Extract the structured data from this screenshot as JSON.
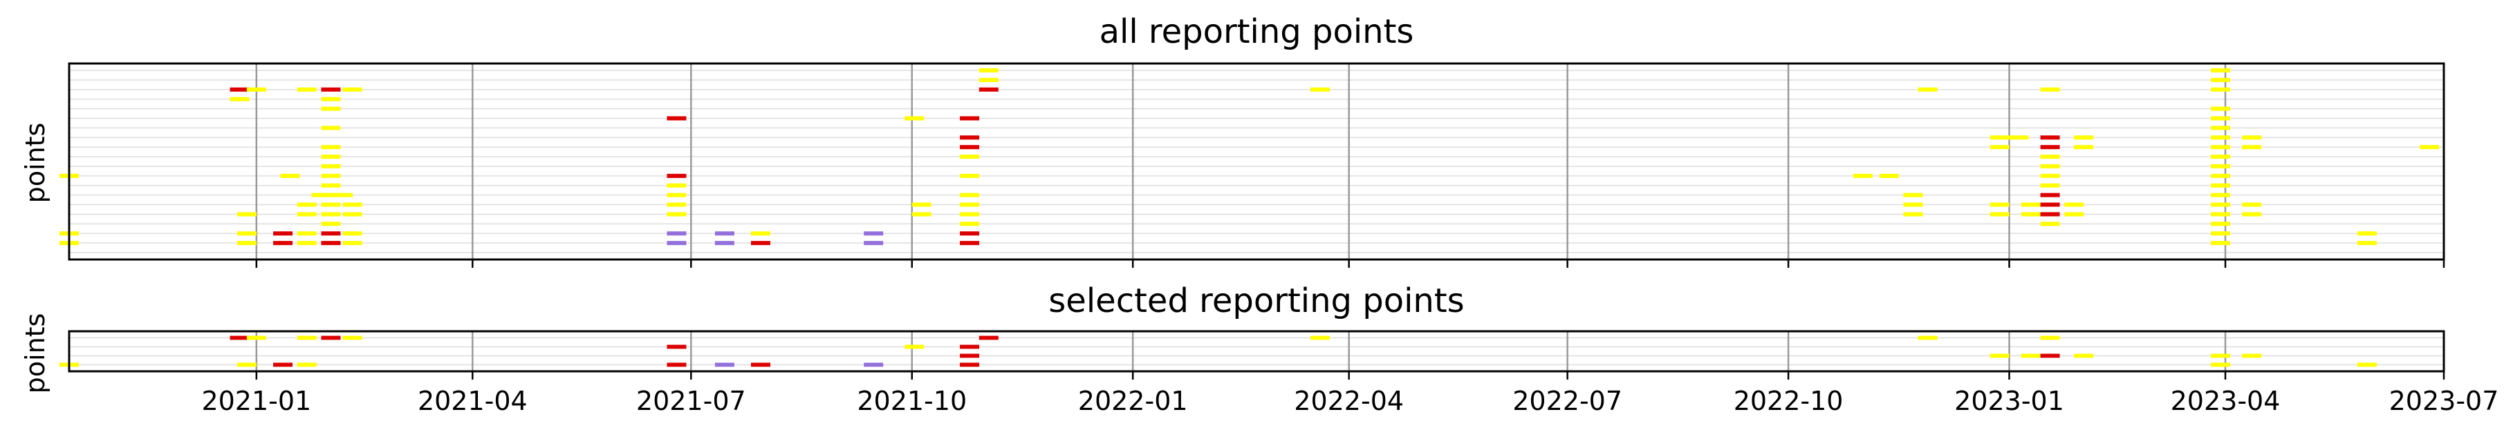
{
  "colors": {
    "yellow": "#ffff00",
    "red": "#dd0000",
    "purple": "#9370db",
    "grid_major": "#999999",
    "grid_minor": "#dddddd",
    "frame": "#000000"
  },
  "chart_data": [
    {
      "type": "event-raster",
      "title": "all reporting points",
      "ylabel": "points",
      "xlabel": "",
      "xlim": [
        "2020-10-15",
        "2023-07-01"
      ],
      "rows": 20,
      "x_ticks": [
        "2021-01",
        "2021-04",
        "2021-07",
        "2021-10",
        "2022-01",
        "2022-04",
        "2022-07",
        "2022-10",
        "2023-01",
        "2023-04",
        "2023-07"
      ],
      "grid": true,
      "legend": "none",
      "events": [
        {
          "date": "2021-11-02",
          "row": 0,
          "color": "yellow"
        },
        {
          "date": "2023-03-30",
          "row": 0,
          "color": "yellow"
        },
        {
          "date": "2021-11-02",
          "row": 1,
          "color": "yellow"
        },
        {
          "date": "2023-03-30",
          "row": 1,
          "color": "yellow"
        },
        {
          "date": "2020-12-25",
          "row": 2,
          "color": "red"
        },
        {
          "date": "2021-01-01",
          "row": 2,
          "color": "yellow"
        },
        {
          "date": "2021-01-22",
          "row": 2,
          "color": "yellow"
        },
        {
          "date": "2021-02-01",
          "row": 2,
          "color": "red"
        },
        {
          "date": "2021-02-10",
          "row": 2,
          "color": "yellow"
        },
        {
          "date": "2021-11-02",
          "row": 2,
          "color": "red"
        },
        {
          "date": "2022-03-20",
          "row": 2,
          "color": "yellow"
        },
        {
          "date": "2022-11-28",
          "row": 2,
          "color": "yellow"
        },
        {
          "date": "2023-01-18",
          "row": 2,
          "color": "yellow"
        },
        {
          "date": "2023-03-30",
          "row": 2,
          "color": "yellow"
        },
        {
          "date": "2020-12-25",
          "row": 3,
          "color": "yellow"
        },
        {
          "date": "2021-02-01",
          "row": 3,
          "color": "yellow"
        },
        {
          "date": "2021-02-01",
          "row": 4,
          "color": "yellow"
        },
        {
          "date": "2023-03-30",
          "row": 4,
          "color": "yellow"
        },
        {
          "date": "2021-06-25",
          "row": 5,
          "color": "red"
        },
        {
          "date": "2021-10-02",
          "row": 5,
          "color": "yellow"
        },
        {
          "date": "2021-10-25",
          "row": 5,
          "color": "red"
        },
        {
          "date": "2023-03-30",
          "row": 5,
          "color": "yellow"
        },
        {
          "date": "2021-02-01",
          "row": 6,
          "color": "yellow"
        },
        {
          "date": "2023-03-30",
          "row": 6,
          "color": "yellow"
        },
        {
          "date": "2021-10-25",
          "row": 7,
          "color": "red"
        },
        {
          "date": "2022-12-28",
          "row": 7,
          "color": "yellow"
        },
        {
          "date": "2023-01-05",
          "row": 7,
          "color": "yellow"
        },
        {
          "date": "2023-01-18",
          "row": 7,
          "color": "red"
        },
        {
          "date": "2023-02-01",
          "row": 7,
          "color": "yellow"
        },
        {
          "date": "2023-03-30",
          "row": 7,
          "color": "yellow"
        },
        {
          "date": "2023-04-12",
          "row": 7,
          "color": "yellow"
        },
        {
          "date": "2021-02-01",
          "row": 8,
          "color": "yellow"
        },
        {
          "date": "2021-10-25",
          "row": 8,
          "color": "red"
        },
        {
          "date": "2022-12-28",
          "row": 8,
          "color": "yellow"
        },
        {
          "date": "2023-01-18",
          "row": 8,
          "color": "red"
        },
        {
          "date": "2023-02-01",
          "row": 8,
          "color": "yellow"
        },
        {
          "date": "2023-03-30",
          "row": 8,
          "color": "yellow"
        },
        {
          "date": "2023-04-12",
          "row": 8,
          "color": "yellow"
        },
        {
          "date": "2023-06-25",
          "row": 8,
          "color": "yellow"
        },
        {
          "date": "2021-02-01",
          "row": 9,
          "color": "yellow"
        },
        {
          "date": "2021-10-25",
          "row": 9,
          "color": "yellow"
        },
        {
          "date": "2023-01-18",
          "row": 9,
          "color": "yellow"
        },
        {
          "date": "2023-03-30",
          "row": 9,
          "color": "yellow"
        },
        {
          "date": "2021-02-01",
          "row": 10,
          "color": "yellow"
        },
        {
          "date": "2023-01-18",
          "row": 10,
          "color": "yellow"
        },
        {
          "date": "2023-03-30",
          "row": 10,
          "color": "yellow"
        },
        {
          "date": "2020-10-15",
          "row": 11,
          "color": "yellow"
        },
        {
          "date": "2021-01-15",
          "row": 11,
          "color": "yellow"
        },
        {
          "date": "2021-02-01",
          "row": 11,
          "color": "yellow"
        },
        {
          "date": "2021-06-25",
          "row": 11,
          "color": "red"
        },
        {
          "date": "2021-10-25",
          "row": 11,
          "color": "yellow"
        },
        {
          "date": "2022-11-01",
          "row": 11,
          "color": "yellow"
        },
        {
          "date": "2022-11-12",
          "row": 11,
          "color": "yellow"
        },
        {
          "date": "2023-01-18",
          "row": 11,
          "color": "yellow"
        },
        {
          "date": "2023-03-30",
          "row": 11,
          "color": "yellow"
        },
        {
          "date": "2021-02-01",
          "row": 12,
          "color": "yellow"
        },
        {
          "date": "2021-06-25",
          "row": 12,
          "color": "yellow"
        },
        {
          "date": "2023-01-18",
          "row": 12,
          "color": "yellow"
        },
        {
          "date": "2023-03-30",
          "row": 12,
          "color": "yellow"
        },
        {
          "date": "2021-01-28",
          "row": 13,
          "color": "yellow"
        },
        {
          "date": "2021-02-01",
          "row": 13,
          "color": "yellow"
        },
        {
          "date": "2021-02-06",
          "row": 13,
          "color": "yellow"
        },
        {
          "date": "2021-06-25",
          "row": 13,
          "color": "yellow"
        },
        {
          "date": "2021-10-25",
          "row": 13,
          "color": "yellow"
        },
        {
          "date": "2022-11-22",
          "row": 13,
          "color": "yellow"
        },
        {
          "date": "2023-01-18",
          "row": 13,
          "color": "red"
        },
        {
          "date": "2023-03-30",
          "row": 13,
          "color": "yellow"
        },
        {
          "date": "2021-01-22",
          "row": 14,
          "color": "yellow"
        },
        {
          "date": "2021-02-01",
          "row": 14,
          "color": "yellow"
        },
        {
          "date": "2021-02-10",
          "row": 14,
          "color": "yellow"
        },
        {
          "date": "2021-06-25",
          "row": 14,
          "color": "yellow"
        },
        {
          "date": "2021-10-05",
          "row": 14,
          "color": "yellow"
        },
        {
          "date": "2021-10-25",
          "row": 14,
          "color": "yellow"
        },
        {
          "date": "2022-11-22",
          "row": 14,
          "color": "yellow"
        },
        {
          "date": "2022-12-28",
          "row": 14,
          "color": "yellow"
        },
        {
          "date": "2023-01-10",
          "row": 14,
          "color": "yellow"
        },
        {
          "date": "2023-01-18",
          "row": 14,
          "color": "red"
        },
        {
          "date": "2023-01-28",
          "row": 14,
          "color": "yellow"
        },
        {
          "date": "2023-03-30",
          "row": 14,
          "color": "yellow"
        },
        {
          "date": "2023-04-12",
          "row": 14,
          "color": "yellow"
        },
        {
          "date": "2020-12-28",
          "row": 15,
          "color": "yellow"
        },
        {
          "date": "2021-01-22",
          "row": 15,
          "color": "yellow"
        },
        {
          "date": "2021-02-01",
          "row": 15,
          "color": "yellow"
        },
        {
          "date": "2021-02-10",
          "row": 15,
          "color": "yellow"
        },
        {
          "date": "2021-06-25",
          "row": 15,
          "color": "yellow"
        },
        {
          "date": "2021-10-05",
          "row": 15,
          "color": "yellow"
        },
        {
          "date": "2021-10-25",
          "row": 15,
          "color": "yellow"
        },
        {
          "date": "2022-11-22",
          "row": 15,
          "color": "yellow"
        },
        {
          "date": "2022-12-28",
          "row": 15,
          "color": "yellow"
        },
        {
          "date": "2023-01-10",
          "row": 15,
          "color": "yellow"
        },
        {
          "date": "2023-01-18",
          "row": 15,
          "color": "red"
        },
        {
          "date": "2023-01-28",
          "row": 15,
          "color": "yellow"
        },
        {
          "date": "2023-03-30",
          "row": 15,
          "color": "yellow"
        },
        {
          "date": "2023-04-12",
          "row": 15,
          "color": "yellow"
        },
        {
          "date": "2021-02-01",
          "row": 16,
          "color": "yellow"
        },
        {
          "date": "2021-10-25",
          "row": 16,
          "color": "yellow"
        },
        {
          "date": "2023-01-18",
          "row": 16,
          "color": "yellow"
        },
        {
          "date": "2023-03-30",
          "row": 16,
          "color": "yellow"
        },
        {
          "date": "2020-10-15",
          "row": 17,
          "color": "yellow"
        },
        {
          "date": "2020-12-28",
          "row": 17,
          "color": "yellow"
        },
        {
          "date": "2021-01-12",
          "row": 17,
          "color": "red"
        },
        {
          "date": "2021-01-22",
          "row": 17,
          "color": "yellow"
        },
        {
          "date": "2021-02-01",
          "row": 17,
          "color": "red"
        },
        {
          "date": "2021-02-10",
          "row": 17,
          "color": "yellow"
        },
        {
          "date": "2021-06-25",
          "row": 17,
          "color": "purple"
        },
        {
          "date": "2021-07-15",
          "row": 17,
          "color": "purple"
        },
        {
          "date": "2021-07-30",
          "row": 17,
          "color": "yellow"
        },
        {
          "date": "2021-09-15",
          "row": 17,
          "color": "purple"
        },
        {
          "date": "2021-10-25",
          "row": 17,
          "color": "red"
        },
        {
          "date": "2023-03-30",
          "row": 17,
          "color": "yellow"
        },
        {
          "date": "2023-05-30",
          "row": 17,
          "color": "yellow"
        },
        {
          "date": "2020-10-15",
          "row": 18,
          "color": "yellow"
        },
        {
          "date": "2020-12-28",
          "row": 18,
          "color": "yellow"
        },
        {
          "date": "2021-01-12",
          "row": 18,
          "color": "red"
        },
        {
          "date": "2021-01-22",
          "row": 18,
          "color": "yellow"
        },
        {
          "date": "2021-02-01",
          "row": 18,
          "color": "red"
        },
        {
          "date": "2021-02-10",
          "row": 18,
          "color": "yellow"
        },
        {
          "date": "2021-06-25",
          "row": 18,
          "color": "purple"
        },
        {
          "date": "2021-07-15",
          "row": 18,
          "color": "purple"
        },
        {
          "date": "2021-07-30",
          "row": 18,
          "color": "red"
        },
        {
          "date": "2021-09-15",
          "row": 18,
          "color": "purple"
        },
        {
          "date": "2021-10-25",
          "row": 18,
          "color": "red"
        },
        {
          "date": "2023-03-30",
          "row": 18,
          "color": "yellow"
        },
        {
          "date": "2023-05-30",
          "row": 18,
          "color": "yellow"
        }
      ]
    },
    {
      "type": "event-raster",
      "title": "selected reporting points",
      "ylabel": "points",
      "xlabel": "",
      "xlim": [
        "2020-10-15",
        "2023-07-01"
      ],
      "rows": 4,
      "x_ticks": [
        "2021-01",
        "2021-04",
        "2021-07",
        "2021-10",
        "2022-01",
        "2022-04",
        "2022-07",
        "2022-10",
        "2023-01",
        "2023-04",
        "2023-07"
      ],
      "x_tick_labels": [
        "2021-01",
        "2021-04",
        "2021-07",
        "2021-10",
        "2022-01",
        "2022-04",
        "2022-07",
        "2022-10",
        "2023-01",
        "2023-04",
        "2023-07"
      ],
      "grid": true,
      "legend": "none",
      "events": [
        {
          "date": "2020-12-25",
          "row": 0,
          "color": "red"
        },
        {
          "date": "2021-01-01",
          "row": 0,
          "color": "yellow"
        },
        {
          "date": "2021-01-22",
          "row": 0,
          "color": "yellow"
        },
        {
          "date": "2021-02-01",
          "row": 0,
          "color": "red"
        },
        {
          "date": "2021-02-10",
          "row": 0,
          "color": "yellow"
        },
        {
          "date": "2021-11-02",
          "row": 0,
          "color": "red"
        },
        {
          "date": "2022-03-20",
          "row": 0,
          "color": "yellow"
        },
        {
          "date": "2022-11-28",
          "row": 0,
          "color": "yellow"
        },
        {
          "date": "2023-01-18",
          "row": 0,
          "color": "yellow"
        },
        {
          "date": "2021-06-25",
          "row": 1,
          "color": "red"
        },
        {
          "date": "2021-10-02",
          "row": 1,
          "color": "yellow"
        },
        {
          "date": "2021-10-25",
          "row": 1,
          "color": "red"
        },
        {
          "date": "2021-10-25",
          "row": 2,
          "color": "red"
        },
        {
          "date": "2022-12-28",
          "row": 2,
          "color": "yellow"
        },
        {
          "date": "2023-01-10",
          "row": 2,
          "color": "yellow"
        },
        {
          "date": "2023-01-18",
          "row": 2,
          "color": "red"
        },
        {
          "date": "2023-02-01",
          "row": 2,
          "color": "yellow"
        },
        {
          "date": "2023-03-30",
          "row": 2,
          "color": "yellow"
        },
        {
          "date": "2023-04-12",
          "row": 2,
          "color": "yellow"
        },
        {
          "date": "2020-10-15",
          "row": 3,
          "color": "yellow"
        },
        {
          "date": "2020-12-28",
          "row": 3,
          "color": "yellow"
        },
        {
          "date": "2021-01-12",
          "row": 3,
          "color": "red"
        },
        {
          "date": "2021-01-22",
          "row": 3,
          "color": "yellow"
        },
        {
          "date": "2021-06-25",
          "row": 3,
          "color": "red"
        },
        {
          "date": "2021-07-15",
          "row": 3,
          "color": "purple"
        },
        {
          "date": "2021-07-30",
          "row": 3,
          "color": "red"
        },
        {
          "date": "2021-09-15",
          "row": 3,
          "color": "purple"
        },
        {
          "date": "2021-10-25",
          "row": 3,
          "color": "red"
        },
        {
          "date": "2023-03-30",
          "row": 3,
          "color": "yellow"
        },
        {
          "date": "2023-05-30",
          "row": 3,
          "color": "yellow"
        }
      ]
    }
  ]
}
